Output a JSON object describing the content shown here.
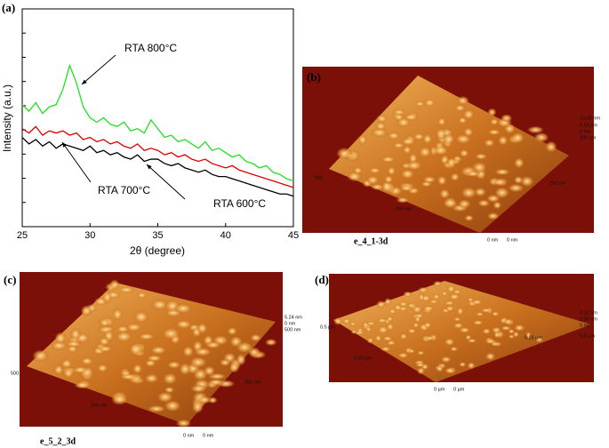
{
  "chart_data": {
    "type": "line",
    "panel_label": "(a)",
    "xlabel": "2θ (degree)",
    "ylabel": "Intensity (a.u.)",
    "x": [
      25,
      25.5,
      26,
      26.5,
      27,
      27.5,
      28,
      28.5,
      29,
      29.5,
      30,
      30.5,
      31,
      31.5,
      32,
      32.5,
      33,
      33.5,
      34,
      34.5,
      35,
      35.5,
      36,
      36.5,
      37,
      37.5,
      38,
      38.5,
      39,
      39.5,
      40,
      40.5,
      41,
      41.5,
      42,
      42.5,
      43,
      43.5,
      44,
      44.5,
      45
    ],
    "series": [
      {
        "name": "RTA 800°C",
        "color": "#22e022",
        "values": [
          5.6,
          5.3,
          5.7,
          5.2,
          5.5,
          5.6,
          6.3,
          7.4,
          6.6,
          5.5,
          5.0,
          4.8,
          5.0,
          4.7,
          4.6,
          4.8,
          4.4,
          4.5,
          4.3,
          4.9,
          4.5,
          4.1,
          4.2,
          3.9,
          4.0,
          3.8,
          3.6,
          3.9,
          3.5,
          3.6,
          3.4,
          3.2,
          3.3,
          3.0,
          2.9,
          2.7,
          2.8,
          2.5,
          2.4,
          2.2,
          2.1
        ]
      },
      {
        "name": "RTA 700°C",
        "color": "#e00000",
        "values": [
          4.5,
          4.3,
          4.6,
          4.2,
          4.4,
          4.3,
          4.4,
          4.2,
          4.3,
          4.0,
          4.1,
          3.9,
          4.0,
          3.8,
          3.9,
          3.7,
          3.6,
          3.8,
          3.5,
          3.6,
          3.5,
          3.3,
          3.4,
          3.2,
          3.3,
          3.1,
          3.0,
          3.1,
          2.9,
          2.8,
          2.7,
          2.8,
          2.6,
          2.5,
          2.4,
          2.3,
          2.2,
          2.1,
          2.0,
          1.9,
          1.8
        ]
      },
      {
        "name": "RTA 600°C",
        "color": "#000000",
        "values": [
          4.1,
          3.8,
          4.0,
          3.7,
          3.9,
          3.6,
          3.8,
          3.7,
          3.6,
          3.5,
          3.7,
          3.4,
          3.5,
          3.3,
          3.4,
          3.2,
          3.1,
          3.3,
          3.0,
          3.1,
          3.1,
          2.9,
          2.8,
          2.9,
          2.7,
          2.6,
          2.5,
          2.6,
          2.4,
          2.3,
          2.3,
          2.2,
          2.1,
          2.0,
          1.9,
          1.8,
          1.7,
          1.6,
          1.5,
          1.5,
          1.4
        ]
      }
    ],
    "xlim": [
      25,
      45
    ],
    "xticks": [
      25,
      30,
      35,
      40,
      45
    ],
    "ylim": [
      0,
      10
    ]
  },
  "panels": [
    {
      "label": "(b)",
      "caption": "e_4_1-3d",
      "scale_labels": [
        "10.48 nm",
        "5.24 nm",
        "0 nm",
        "500 nm",
        "500",
        "250 nm",
        "250 nm",
        "0 nm",
        "0 nm"
      ]
    },
    {
      "label": "(c)",
      "caption": "e_5_2_3d",
      "scale_labels": [
        "5.24 nm",
        "0 nm",
        "500 nm",
        "500",
        "250 nm",
        "250 nm",
        "0 nm",
        "0 nm"
      ]
    },
    {
      "label": "(d)",
      "scale_labels": [
        "5.12 nm",
        "2.56 nm",
        "0 nm",
        "0.5 µm",
        "0.5 µm",
        "0.25 µm",
        "0.25 µm",
        "0 µm",
        "0 µm"
      ]
    }
  ]
}
